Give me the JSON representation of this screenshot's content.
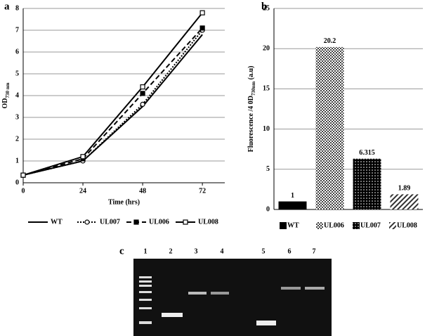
{
  "chart_data": [
    {
      "type": "line",
      "label": "a",
      "xlabel": "Time (hrs)",
      "ylabel": "OD",
      "ylabel_sub": "730 nm",
      "x": [
        0,
        24,
        48,
        72
      ],
      "xlim": [
        0,
        81
      ],
      "xticks": [
        0,
        24,
        48,
        72
      ],
      "ylim": [
        0,
        8
      ],
      "yticks": [
        0,
        1,
        2,
        3,
        4,
        5,
        6,
        7,
        8
      ],
      "grid": true,
      "series": [
        {
          "name": "WT",
          "color": "#000000",
          "dash": "solid",
          "marker": "none",
          "values": [
            0.35,
            1.0,
            3.5,
            6.8
          ]
        },
        {
          "name": "UL007",
          "color": "#000000",
          "dash": "dotted",
          "marker": "open-circle",
          "values": [
            0.35,
            1.0,
            3.6,
            7.0
          ]
        },
        {
          "name": "UL006",
          "color": "#000000",
          "dash": "dashed",
          "marker": "filled-square",
          "values": [
            0.35,
            1.1,
            4.1,
            7.1
          ]
        },
        {
          "name": "UL008",
          "color": "#000000",
          "dash": "solid",
          "marker": "open-square",
          "values": [
            0.35,
            1.2,
            4.4,
            7.8
          ]
        }
      ]
    },
    {
      "type": "bar",
      "label": "b",
      "ylabel": "Fluorescence /4 0D",
      "ylabel_sub": "730nm",
      "ylabel_tail": " (a.u)",
      "categories": [
        "WT",
        "UL006",
        "UL007",
        "UL008"
      ],
      "values": [
        1,
        20.2,
        6.315,
        1.89
      ],
      "patterns": [
        "solid",
        "checker",
        "dots",
        "hatch"
      ],
      "color": "#000000",
      "ylim": [
        0,
        25
      ],
      "yticks": [
        0,
        5,
        10,
        15,
        20,
        25
      ],
      "grid": true
    }
  ],
  "gel": {
    "label": "c",
    "lanes": [
      "1",
      "2",
      "3",
      "4",
      "5",
      "6",
      "7"
    ]
  }
}
